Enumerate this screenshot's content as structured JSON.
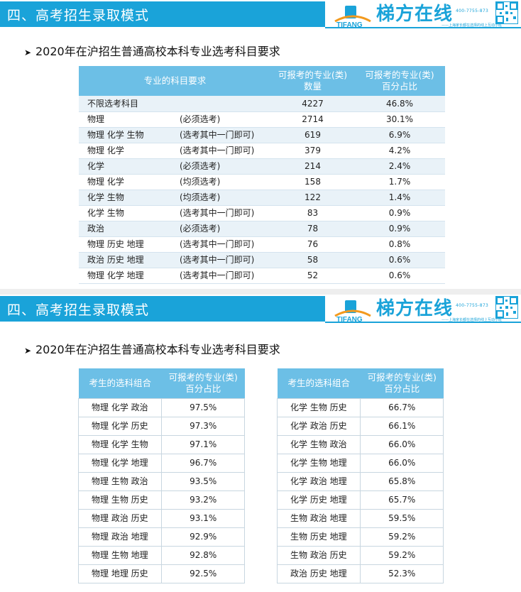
{
  "banner": {
    "title": "四、高考招生录取模式"
  },
  "logo": {
    "brand": "梯方在线",
    "mark_text": "TIFANG",
    "phone": "400-7755-873",
    "slogan": "——上海家长都在选择的线上互动小班"
  },
  "slide1": {
    "subtitle": "2020年在沪招生普通高校本科专业选考科目要求",
    "headers": {
      "subject_req": "专业的科目要求",
      "count_line1": "可报考的专业(类)",
      "count_line2": "数量",
      "pct_line1": "可报考的专业(类)",
      "pct_line2": "百分占比"
    },
    "rows": [
      {
        "subjects": "不限选考科目",
        "requirement": "",
        "count": "4227",
        "pct": "46.8%"
      },
      {
        "subjects": "物理",
        "requirement": "(必须选考)",
        "count": "2714",
        "pct": "30.1%"
      },
      {
        "subjects": "物理 化学 生物",
        "requirement": "(选考其中一门即可)",
        "count": "619",
        "pct": "6.9%"
      },
      {
        "subjects": "物理 化学",
        "requirement": "(选考其中一门即可)",
        "count": "379",
        "pct": "4.2%"
      },
      {
        "subjects": "化学",
        "requirement": "(必须选考)",
        "count": "214",
        "pct": "2.4%"
      },
      {
        "subjects": "物理 化学",
        "requirement": "(均须选考)",
        "count": "158",
        "pct": "1.7%"
      },
      {
        "subjects": "化学 生物",
        "requirement": "(均须选考)",
        "count": "122",
        "pct": "1.4%"
      },
      {
        "subjects": "化学 生物",
        "requirement": "(选考其中一门即可)",
        "count": "83",
        "pct": "0.9%"
      },
      {
        "subjects": "政治",
        "requirement": "(必须选考)",
        "count": "78",
        "pct": "0.9%"
      },
      {
        "subjects": "物理 历史 地理",
        "requirement": "(选考其中一门即可)",
        "count": "76",
        "pct": "0.8%"
      },
      {
        "subjects": "政治 历史 地理",
        "requirement": "(选考其中一门即可)",
        "count": "58",
        "pct": "0.6%"
      },
      {
        "subjects": "物理 化学 地理",
        "requirement": "(选考其中一门即可)",
        "count": "52",
        "pct": "0.6%"
      }
    ]
  },
  "slide2": {
    "subtitle": "2020年在沪招生普通高校本科专业选考科目要求",
    "headers": {
      "combo": "考生的选科组合",
      "pct_line1": "可报考的专业(类)",
      "pct_line2": "百分占比"
    },
    "left_rows": [
      {
        "combo": "物理 化学 政治",
        "pct": "97.5%"
      },
      {
        "combo": "物理 化学 历史",
        "pct": "97.3%"
      },
      {
        "combo": "物理 化学 生物",
        "pct": "97.1%"
      },
      {
        "combo": "物理 化学 地理",
        "pct": "96.7%"
      },
      {
        "combo": "物理 生物 政治",
        "pct": "93.5%"
      },
      {
        "combo": "物理 生物 历史",
        "pct": "93.2%"
      },
      {
        "combo": "物理 政治 历史",
        "pct": "93.1%"
      },
      {
        "combo": "物理 政治 地理",
        "pct": "92.9%"
      },
      {
        "combo": "物理 生物 地理",
        "pct": "92.8%"
      },
      {
        "combo": "物理 地理 历史",
        "pct": "92.5%"
      }
    ],
    "right_rows": [
      {
        "combo": "化学 生物 历史",
        "pct": "66.7%"
      },
      {
        "combo": "化学 政治 历史",
        "pct": "66.1%"
      },
      {
        "combo": "化学 生物 政治",
        "pct": "66.0%"
      },
      {
        "combo": "化学 生物 地理",
        "pct": "66.0%"
      },
      {
        "combo": "化学 政治 地理",
        "pct": "65.8%"
      },
      {
        "combo": "化学 历史 地理",
        "pct": "65.7%"
      },
      {
        "combo": "生物 政治 地理",
        "pct": "59.5%"
      },
      {
        "combo": "生物 历史 地理",
        "pct": "59.2%"
      },
      {
        "combo": "生物 政治 历史",
        "pct": "59.2%"
      },
      {
        "combo": "政治 历史 地理",
        "pct": "52.3%"
      }
    ]
  },
  "colors": {
    "accent": "#1aa3d9",
    "table_header": "#6cbfe6",
    "row_stripe": "#e9f2f8"
  }
}
